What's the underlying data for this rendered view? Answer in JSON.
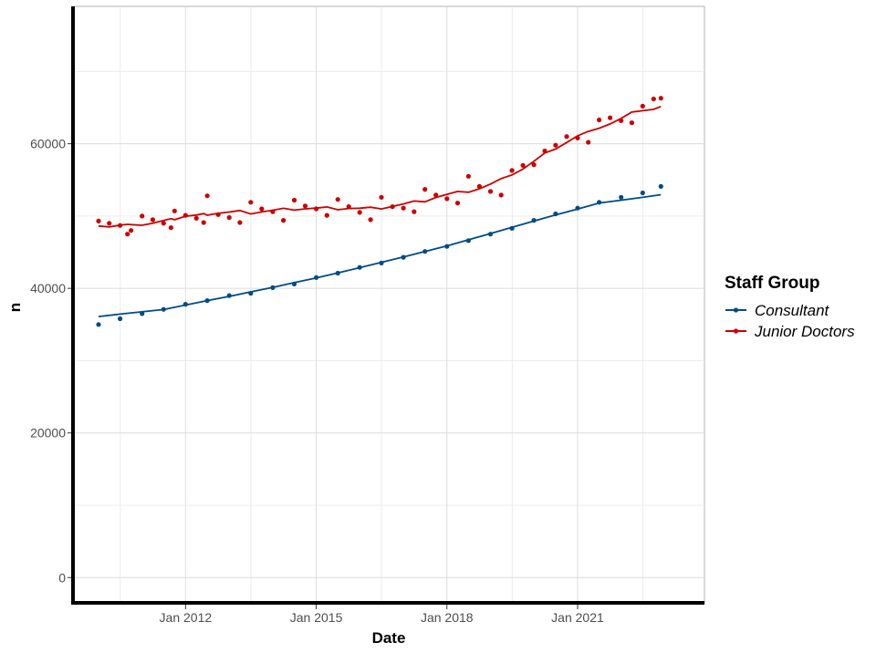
{
  "chart_data": {
    "type": "line",
    "xlabel": "Date",
    "ylabel": "n",
    "x_ticks": [
      "Jan 2012",
      "Jan 2015",
      "Jan 2018",
      "Jan 2021"
    ],
    "y_ticks": [
      0,
      20000,
      40000,
      60000
    ],
    "xlim": [
      "2009-06-01",
      "2023-12-01"
    ],
    "ylim": [
      -3500,
      79000
    ],
    "grid": true,
    "legend": {
      "title": "Staff Group",
      "position": "right"
    },
    "series": [
      {
        "name": "Consultant",
        "color": "#004b87",
        "marker": "point",
        "smooth": true,
        "x": [
          "2010-01",
          "2010-07",
          "2011-01",
          "2011-07",
          "2012-01",
          "2012-07",
          "2013-01",
          "2013-07",
          "2014-01",
          "2014-07",
          "2015-01",
          "2015-07",
          "2016-01",
          "2016-07",
          "2017-01",
          "2017-07",
          "2018-01",
          "2018-07",
          "2019-01",
          "2019-07",
          "2020-01",
          "2020-07",
          "2021-01",
          "2021-07",
          "2022-01",
          "2022-07",
          "2022-12"
        ],
        "y": [
          35000,
          35800,
          36500,
          37100,
          37800,
          38300,
          39000,
          39300,
          40100,
          40600,
          41500,
          42100,
          42900,
          43500,
          44300,
          45100,
          45800,
          46600,
          47500,
          48300,
          49400,
          50300,
          51100,
          51900,
          52600,
          53200,
          54100
        ]
      },
      {
        "name": "Junior Doctors",
        "color": "#cc0000",
        "marker": "point",
        "smooth": true,
        "x": [
          "2010-01",
          "2010-04",
          "2010-07",
          "2010-09",
          "2010-10",
          "2011-01",
          "2011-04",
          "2011-07",
          "2011-09",
          "2011-10",
          "2012-01",
          "2012-04",
          "2012-06",
          "2012-07",
          "2012-10",
          "2013-01",
          "2013-04",
          "2013-07",
          "2013-10",
          "2014-01",
          "2014-04",
          "2014-07",
          "2014-10",
          "2015-01",
          "2015-04",
          "2015-07",
          "2015-10",
          "2016-01",
          "2016-04",
          "2016-07",
          "2016-10",
          "2017-01",
          "2017-04",
          "2017-07",
          "2017-10",
          "2018-01",
          "2018-04",
          "2018-07",
          "2018-10",
          "2019-01",
          "2019-04",
          "2019-07",
          "2019-10",
          "2020-01",
          "2020-04",
          "2020-07",
          "2020-10",
          "2021-01",
          "2021-04",
          "2021-07",
          "2021-10",
          "2022-01",
          "2022-04",
          "2022-07",
          "2022-10",
          "2022-12"
        ],
        "y": [
          49300,
          49000,
          48700,
          47500,
          48000,
          50000,
          49500,
          49000,
          48400,
          50700,
          50100,
          49700,
          49100,
          52800,
          50200,
          49800,
          49100,
          51900,
          51000,
          50600,
          49400,
          52200,
          51400,
          51000,
          50100,
          52300,
          51300,
          50500,
          49500,
          52600,
          51300,
          51100,
          50600,
          53700,
          52900,
          52400,
          51800,
          55500,
          54100,
          53400,
          52900,
          56300,
          57000,
          57100,
          59000,
          59800,
          61000,
          60800,
          60200,
          63300,
          63600,
          63200,
          62900,
          65200,
          66200,
          66300
        ]
      }
    ]
  }
}
